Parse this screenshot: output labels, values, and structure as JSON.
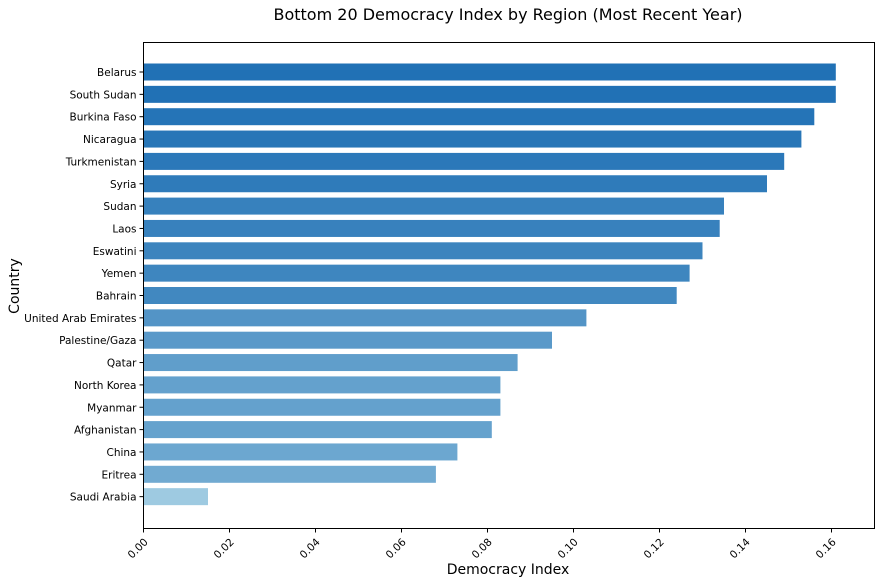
{
  "chart_data": {
    "type": "bar",
    "orientation": "horizontal",
    "title": "Bottom 20 Democracy Index by Region (Most Recent Year)",
    "xlabel": "Democracy Index",
    "ylabel": "Country",
    "xlim": [
      0,
      0.17
    ],
    "xticks": [
      "0.00",
      "0.02",
      "0.04",
      "0.06",
      "0.08",
      "0.10",
      "0.12",
      "0.14",
      "0.16"
    ],
    "grid": false,
    "legend": "none",
    "color_low": "#9ecae1",
    "color_high": "#2171b5",
    "categories": [
      "Belarus",
      "South Sudan",
      "Burkina Faso",
      "Nicaragua",
      "Turkmenistan",
      "Syria",
      "Sudan",
      "Laos",
      "Eswatini",
      "Yemen",
      "Bahrain",
      "United Arab Emirates",
      "Palestine/Gaza",
      "Qatar",
      "North Korea",
      "Myanmar",
      "Afghanistan",
      "China",
      "Eritrea",
      "Saudi Arabia"
    ],
    "values": [
      0.161,
      0.161,
      0.156,
      0.153,
      0.149,
      0.145,
      0.135,
      0.134,
      0.13,
      0.127,
      0.124,
      0.103,
      0.095,
      0.087,
      0.083,
      0.083,
      0.081,
      0.073,
      0.068,
      0.015
    ]
  }
}
